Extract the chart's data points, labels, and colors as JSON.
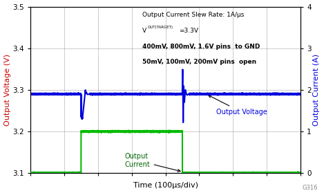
{
  "title": "",
  "xlabel": "Time (100μs/div)",
  "ylabel_left": "Output Voltage (V)",
  "ylabel_right": "Output Current (A)",
  "ylim_left": [
    3.1,
    3.5
  ],
  "ylim_right": [
    0,
    4
  ],
  "yticks_left": [
    3.1,
    3.2,
    3.3,
    3.4,
    3.5
  ],
  "yticks_right": [
    0,
    1,
    2,
    3,
    4
  ],
  "xlim": [
    0,
    8
  ],
  "xticks": [
    0,
    1,
    2,
    3,
    4,
    5,
    6,
    7,
    8
  ],
  "grid_color": "#888888",
  "bg_color": "#ffffff",
  "voltage_color": "#0000dd",
  "current_color": "#00bb00",
  "ylabel_left_color": "#cc0000",
  "ylabel_right_color": "#0000dd",
  "voltage_baseline": 3.29,
  "current_low_A": 0.0,
  "current_high_A": 1.0,
  "current_step_start": 1.5,
  "current_step_end": 4.5,
  "annotation_text_voltage": "Output Voltage",
  "annotation_text_current": "Output\nCurrent",
  "note_line1": "Output Current Slew Rate: 1A/μs",
  "note_line3": "400mV, 800mV, 1.6V pins  to GND",
  "note_line4": "50mV, 100mV, 200mV pins  open",
  "watermark": "G316"
}
